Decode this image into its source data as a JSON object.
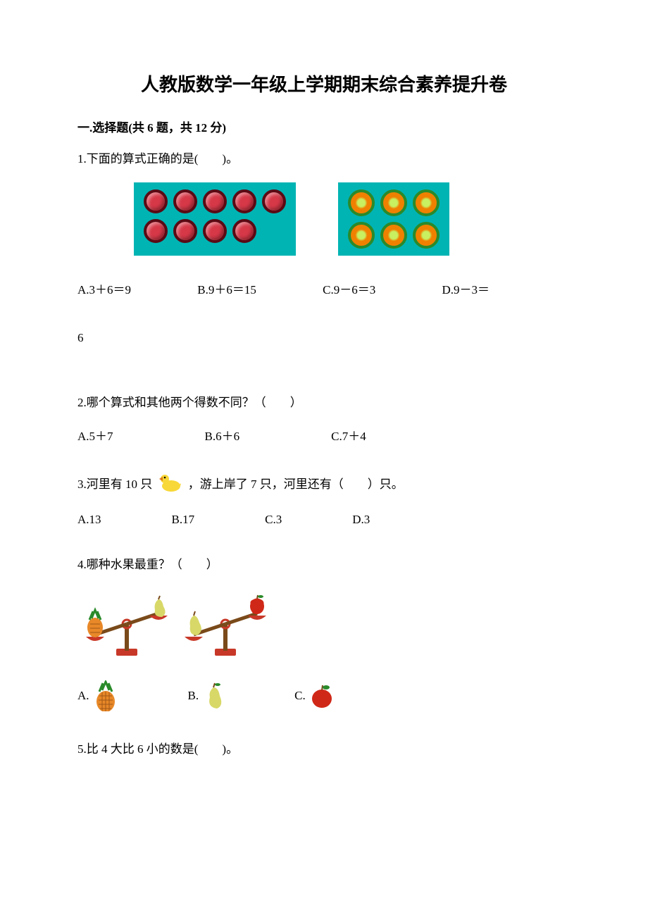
{
  "title": "人教版数学一年级上学期期末综合素养提升卷",
  "section1": {
    "heading": "一.选择题(共 6 题，共 12 分)"
  },
  "q1": {
    "text": "1.下面的算式正确的是(　　)。",
    "img1": {
      "bg_color": "#00b4b4",
      "circle_fill": "#d63848",
      "circle_border": "#5a0a14",
      "circle_size": 34,
      "rows": [
        5,
        4
      ]
    },
    "img2": {
      "bg_color": "#00b4b4",
      "circle_fill": "#f08000",
      "circle_border": "#2a8a2a",
      "circle_inner": "#c8f060",
      "circle_size": 38,
      "rows": [
        3,
        3
      ]
    },
    "optA": "A.3＋6＝9",
    "optB": "B.9＋6＝15",
    "optC": "C.9－6＝3",
    "optD": "D.9－3＝",
    "optD_tail": "6"
  },
  "q2": {
    "text": "2.哪个算式和其他两个得数不同？（　　）",
    "optA": "A.5＋7",
    "optB": "B.6＋6",
    "optC": "C.7＋4"
  },
  "q3": {
    "text_pre": "3.河里有 10 只",
    "text_post": "，游上岸了 7 只，河里还有（　　）只。",
    "duck": {
      "body": "#f8d838",
      "beak": "#e07818"
    },
    "optA": "A.13",
    "optB": "B.17",
    "optC": "C.3",
    "optD": "D.3"
  },
  "q4": {
    "text": "4.哪种水果最重？（　　）",
    "scale": {
      "base_color": "#c83828",
      "beam_color": "#7a4a1a",
      "pan_color": "#c83828"
    },
    "pineapple": {
      "body": "#e88828",
      "leaf": "#2a8a2a",
      "pattern": "#a05818"
    },
    "pear": {
      "body": "#d8d868",
      "leaf": "#2a8a2a"
    },
    "apple": {
      "body": "#d02818",
      "leaf": "#2a8a2a"
    },
    "optA": "A.",
    "optB": "B.",
    "optC": "C."
  },
  "q5": {
    "text": "5.比 4 大比 6 小的数是(　　)。"
  }
}
